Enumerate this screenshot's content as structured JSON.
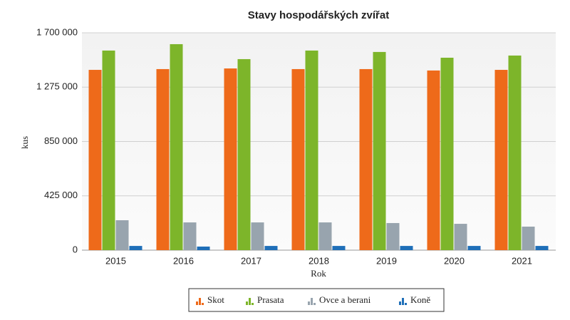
{
  "chart_data": {
    "type": "bar",
    "title": "Stavy hospodářských zvířat",
    "x_label": "Rok",
    "y_label": "kus",
    "categories": [
      "2015",
      "2016",
      "2017",
      "2018",
      "2019",
      "2020",
      "2021"
    ],
    "series": [
      {
        "name": "Skot",
        "color": "#ee6a1a",
        "values": [
          1410000,
          1416000,
          1421000,
          1416000,
          1416000,
          1405000,
          1410000
        ]
      },
      {
        "name": "Prasata",
        "color": "#7db52a",
        "values": [
          1561000,
          1611000,
          1494000,
          1561000,
          1550000,
          1505000,
          1522000
        ]
      },
      {
        "name": "Ovce a berani",
        "color": "#98a4ae",
        "values": [
          234000,
          217000,
          217000,
          217000,
          212000,
          206000,
          184000
        ]
      },
      {
        "name": "Koně",
        "color": "#1f6fb8",
        "values": [
          33000,
          28000,
          33000,
          33000,
          33000,
          33000,
          33000
        ]
      }
    ],
    "ylim": [
      0,
      1700000
    ],
    "yticks": [
      0,
      {
        "value": 425000,
        "label": "425 000"
      },
      {
        "value": 850000,
        "label": "850 000"
      },
      {
        "value": 1275000,
        "label": "1 275 000"
      },
      {
        "value": 1700000,
        "label": "1 700 000"
      }
    ],
    "grid": true,
    "legend": "bottom"
  }
}
